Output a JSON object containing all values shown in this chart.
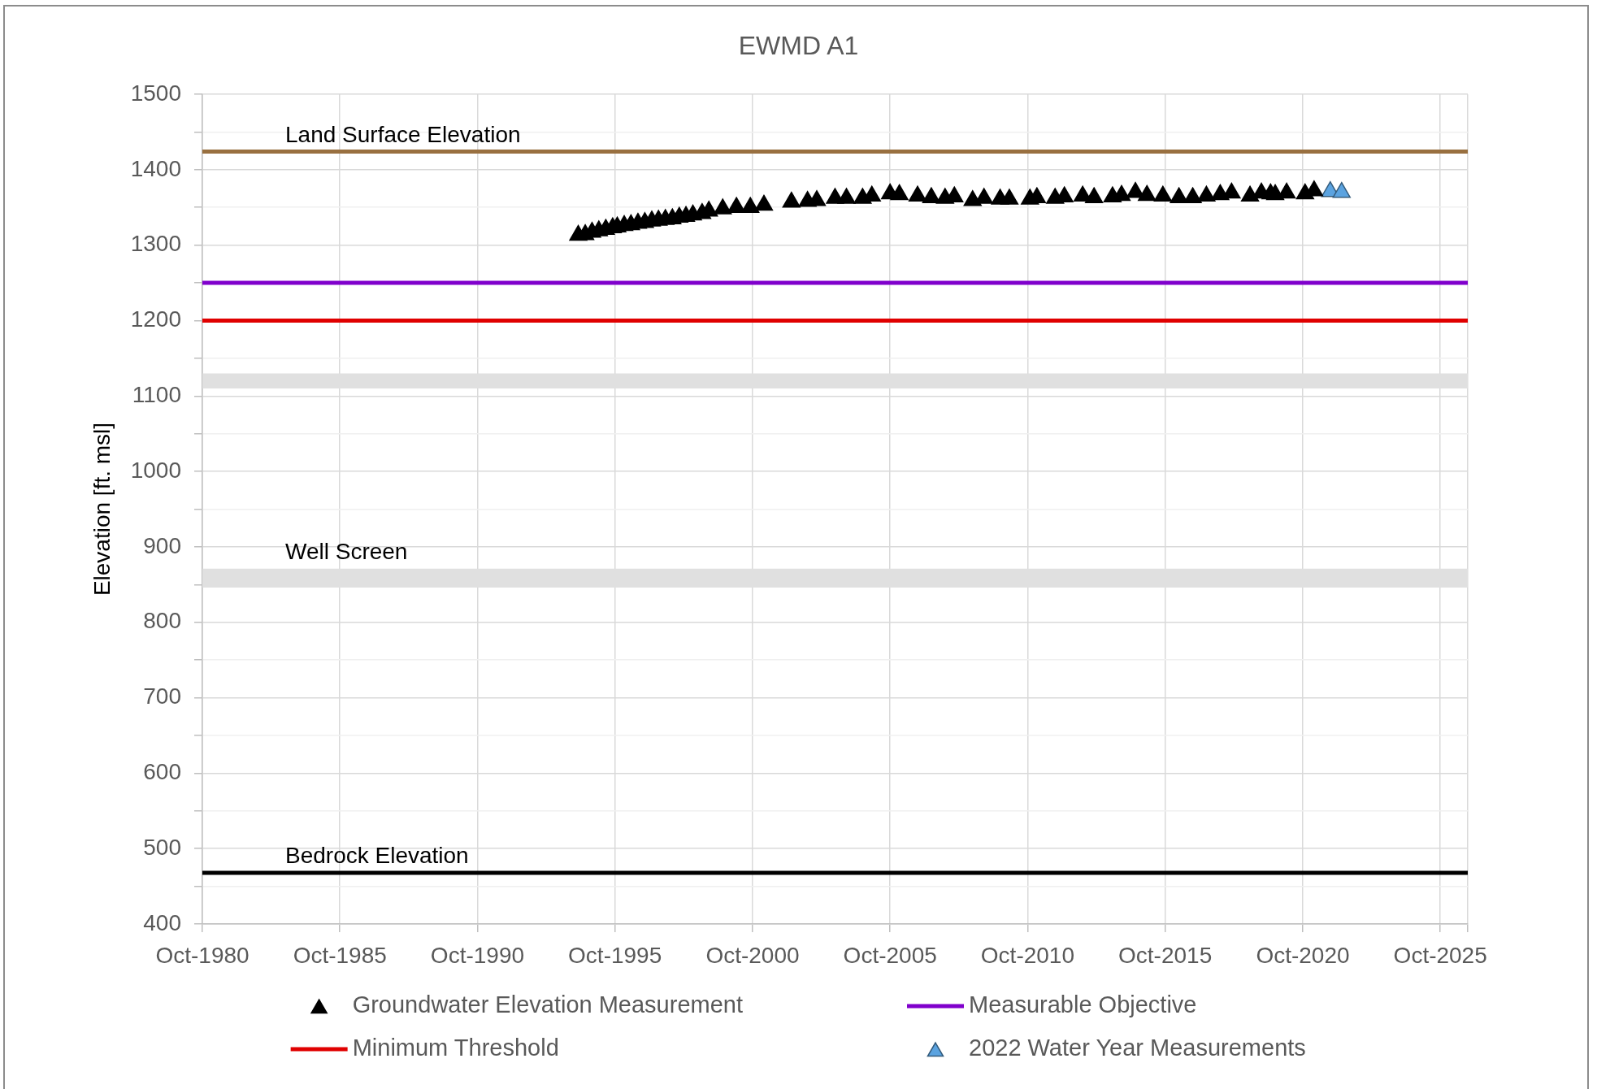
{
  "chart_data": {
    "type": "scatter",
    "title": "EWMD A1",
    "ylabel": "Elevation [ft. msl]",
    "xlim": [
      "1980-10",
      "2026-10"
    ],
    "xticks": [
      {
        "value": "1980-10",
        "label": "Oct-1980"
      },
      {
        "value": "1985-10",
        "label": "Oct-1985"
      },
      {
        "value": "1990-10",
        "label": "Oct-1990"
      },
      {
        "value": "1995-10",
        "label": "Oct-1995"
      },
      {
        "value": "2000-10",
        "label": "Oct-2000"
      },
      {
        "value": "2005-10",
        "label": "Oct-2005"
      },
      {
        "value": "2010-10",
        "label": "Oct-2010"
      },
      {
        "value": "2015-10",
        "label": "Oct-2015"
      },
      {
        "value": "2020-10",
        "label": "Oct-2020"
      },
      {
        "value": "2025-10",
        "label": "Oct-2025"
      },
      {
        "value": "2026-10",
        "label": null
      }
    ],
    "ylim": [
      400,
      1500
    ],
    "yticks": [
      400,
      {
        "value": 450,
        "label": null
      },
      500,
      {
        "value": 550,
        "label": null
      },
      600,
      {
        "value": 650,
        "label": null
      },
      700,
      {
        "value": 750,
        "label": null
      },
      800,
      {
        "value": 850,
        "label": null
      },
      900,
      {
        "value": 950,
        "label": null
      },
      1000,
      {
        "value": 1050,
        "label": null
      },
      1100,
      {
        "value": 1150,
        "label": null
      },
      1200,
      {
        "value": 1250,
        "label": null
      },
      1300,
      {
        "value": 1350,
        "label": null
      },
      1400,
      {
        "value": 1450,
        "label": null
      },
      1500
    ],
    "grid": true,
    "legend": "bottom",
    "marker": "triangle",
    "series": [
      {
        "name": "Groundwater Elevation Measurement",
        "color": "#000000",
        "x": [
          "1994-06",
          "1994-09",
          "1994-12",
          "1995-03",
          "1995-06",
          "1995-09",
          "1995-11",
          "1996-02",
          "1996-05",
          "1996-08",
          "1996-11",
          "1997-02",
          "1997-05",
          "1997-08",
          "1997-11",
          "1998-02",
          "1998-05",
          "1998-08",
          "1998-12",
          "1999-03",
          "1999-09",
          "2000-03",
          "2000-09",
          "2001-03",
          "2002-03",
          "2002-10",
          "2003-02",
          "2003-10",
          "2004-03",
          "2004-10",
          "2005-02",
          "2005-10",
          "2006-02",
          "2006-10",
          "2007-04",
          "2007-10",
          "2008-02",
          "2008-10",
          "2009-03",
          "2009-10",
          "2010-02",
          "2010-11",
          "2011-02",
          "2011-10",
          "2012-02",
          "2012-10",
          "2013-03",
          "2013-11",
          "2014-03",
          "2014-09",
          "2015-02",
          "2015-09",
          "2016-04",
          "2016-10",
          "2017-04",
          "2017-10",
          "2018-03",
          "2018-11",
          "2019-04",
          "2019-08",
          "2019-10",
          "2020-03",
          "2020-11",
          "2021-03"
        ],
        "values": [
          1313,
          1314,
          1317,
          1319,
          1321,
          1323,
          1324,
          1326,
          1327,
          1329,
          1330,
          1332,
          1333,
          1334,
          1335,
          1337,
          1338,
          1340,
          1342,
          1345,
          1348,
          1350,
          1350,
          1353,
          1357,
          1358,
          1359,
          1362,
          1362,
          1362,
          1365,
          1368,
          1367,
          1365,
          1363,
          1362,
          1364,
          1359,
          1362,
          1361,
          1361,
          1361,
          1363,
          1362,
          1364,
          1365,
          1363,
          1364,
          1366,
          1370,
          1366,
          1365,
          1363,
          1363,
          1365,
          1367,
          1369,
          1365,
          1369,
          1368,
          1367,
          1369,
          1368,
          1372
        ]
      },
      {
        "name": "Measurable Objective",
        "type": "line",
        "marker": "none",
        "color": "#8000cc",
        "x": [
          "1980-10",
          "2026-10"
        ],
        "values": [
          1250,
          1250
        ]
      },
      {
        "name": "Minimum Threshold",
        "type": "line",
        "marker": "none",
        "color": "#e00000",
        "x": [
          "1980-10",
          "2026-10"
        ],
        "values": [
          1200,
          1200
        ]
      },
      {
        "name": "2022 Water Year Measurements",
        "color": "#5ba3e0",
        "x": [
          "2021-10",
          "2022-03"
        ],
        "values": [
          1371,
          1370
        ]
      }
    ],
    "ref_lines": [
      {
        "axis": "y",
        "value": 1424,
        "label": "Land Surface Elevation",
        "color": "#997040"
      },
      {
        "axis": "y",
        "value": 468,
        "label": "Bedrock Elevation",
        "color": "#000000"
      }
    ],
    "bands": [
      {
        "axis": "y",
        "from": 1110,
        "to": 1130,
        "color": "#e0e0e0"
      },
      {
        "axis": "y",
        "from": 846,
        "to": 871,
        "label": "Well Screen",
        "color": "#e0e0e0"
      }
    ]
  }
}
